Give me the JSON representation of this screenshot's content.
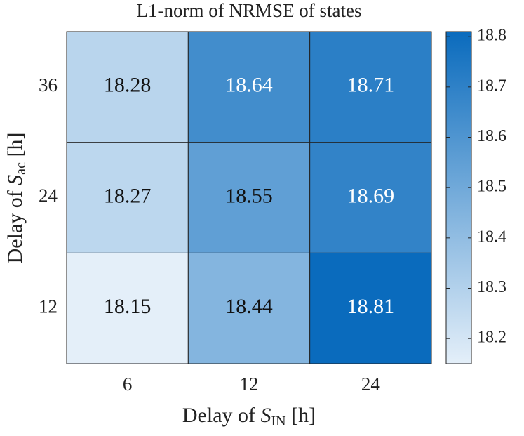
{
  "chart_data": {
    "type": "heatmap",
    "title": "L1-norm of NRMSE of states",
    "x_label": {
      "prefix": "Delay of ",
      "symbol": "S",
      "subscript": "IN",
      "suffix": " [h]"
    },
    "y_label": {
      "prefix": "Delay of ",
      "symbol": "S",
      "subscript": "ac",
      "suffix": " [h]"
    },
    "x_categories": [
      "6",
      "12",
      "24"
    ],
    "y_categories": [
      "12",
      "24",
      "36"
    ],
    "values": [
      [
        18.15,
        18.44,
        18.81
      ],
      [
        18.27,
        18.55,
        18.69
      ],
      [
        18.28,
        18.64,
        18.71
      ]
    ],
    "colormap": [
      "#e4eff9",
      "#0a6bbd"
    ],
    "clim": [
      18.15,
      18.81
    ],
    "colorbar_ticks": [
      18.2,
      18.3,
      18.4,
      18.5,
      18.6,
      18.7,
      18.8
    ]
  }
}
